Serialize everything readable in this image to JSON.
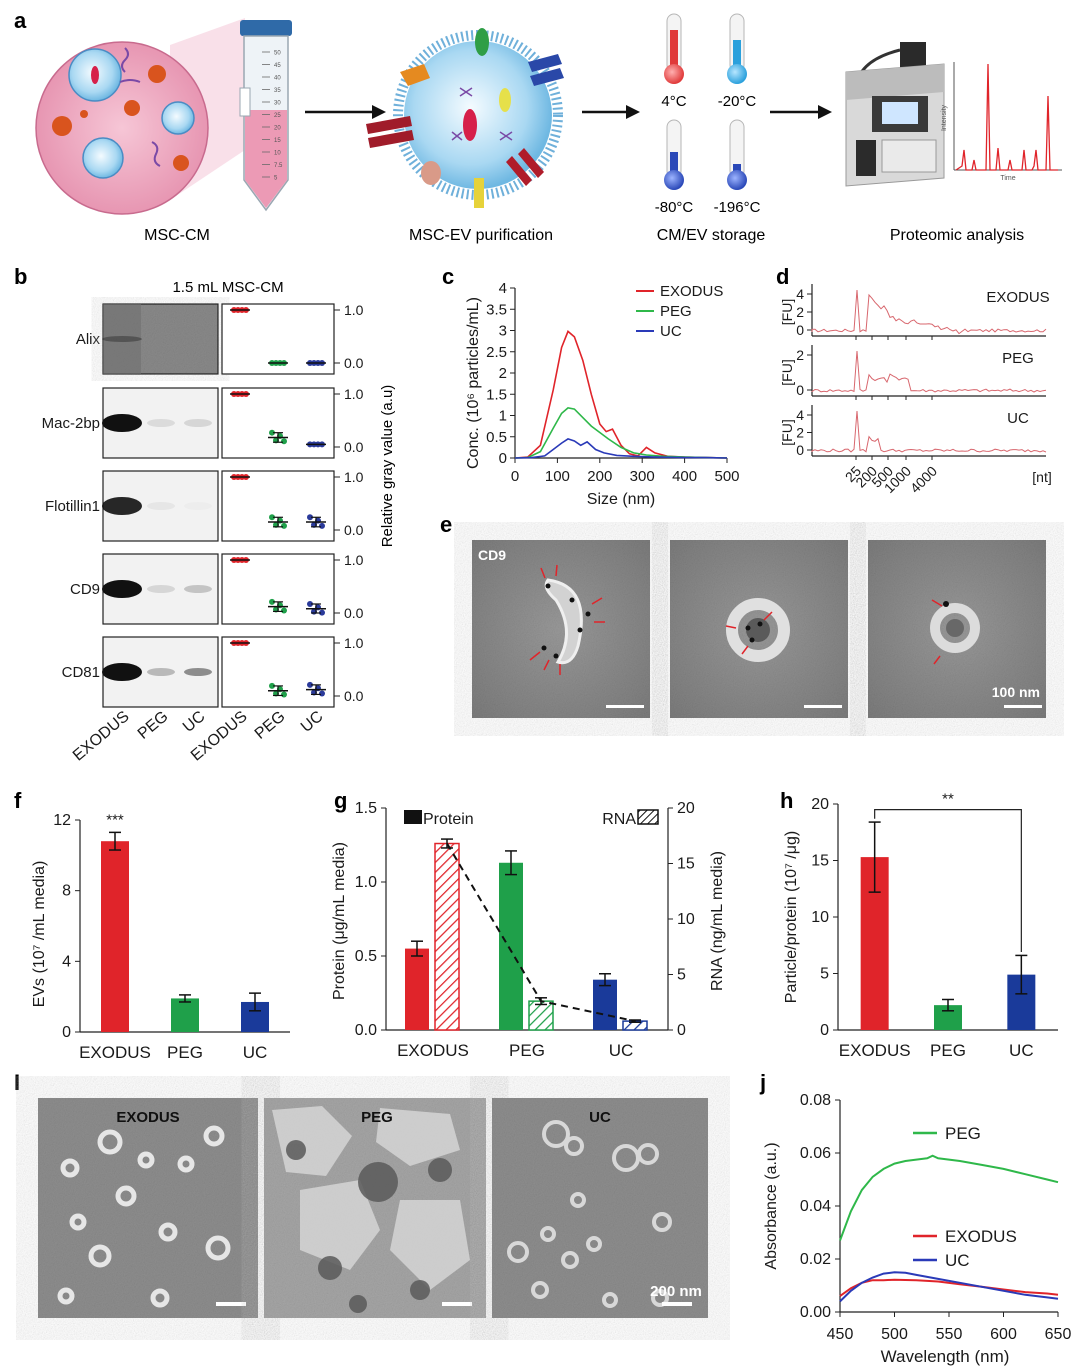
{
  "panel_letters": {
    "a": "a",
    "b": "b",
    "c": "c",
    "d": "d",
    "e": "e",
    "f": "f",
    "g": "g",
    "h": "h",
    "i": "I",
    "j": "j"
  },
  "panel_a": {
    "steps": [
      "MSC-CM",
      "MSC-EV purification",
      "CM/EV storage",
      "Proteomic analysis"
    ],
    "temperatures": [
      "4°C",
      "-20°C",
      "-80°C",
      "-196°C"
    ],
    "tube_ticks": [
      "50",
      "45",
      "40",
      "35",
      "30",
      "25",
      "20",
      "15",
      "10",
      "7.5",
      "5"
    ],
    "spectrum_ylabel": "Intensity",
    "spectrum_xlabel": "Time"
  },
  "panel_b": {
    "title": "1.5 mL MSC-CM",
    "proteins": [
      "Alix",
      "Mac-2bp",
      "Flotillin1",
      "CD9",
      "CD81"
    ],
    "lanes": [
      "EXODUS",
      "PEG",
      "UC"
    ],
    "ylabel": "Relative gray value (a.u)",
    "yticks": [
      "1.0",
      "0.0"
    ],
    "colors": {
      "EXODUS": "#e0242a",
      "PEG": "#1fa04a",
      "UC": "#2a3a9a"
    },
    "relative_values": [
      {
        "protein": "Alix",
        "EXODUS": 1.0,
        "PEG": 0.0,
        "UC": 0.0
      },
      {
        "protein": "Mac-2bp",
        "EXODUS": 1.0,
        "PEG": 0.18,
        "UC": 0.05
      },
      {
        "protein": "Flotillin1",
        "EXODUS": 1.0,
        "PEG": 0.15,
        "UC": 0.15
      },
      {
        "protein": "CD9",
        "EXODUS": 1.0,
        "PEG": 0.12,
        "UC": 0.08
      },
      {
        "protein": "CD81",
        "EXODUS": 1.0,
        "PEG": 0.1,
        "UC": 0.12
      }
    ]
  },
  "chart_data": [
    {
      "panel": "c",
      "type": "line",
      "xlabel": "Size (nm)",
      "ylabel": "Conc. (10⁶ particles/mL)",
      "xlim": [
        0,
        500
      ],
      "ylim": [
        0,
        4
      ],
      "xticks": [
        "0",
        "100",
        "200",
        "300",
        "400",
        "500"
      ],
      "yticks": [
        "0",
        "0.5",
        "1",
        "1.5",
        "2",
        "2.5",
        "3",
        "3.5",
        "4"
      ],
      "series": [
        {
          "name": "EXODUS",
          "color": "#e0242a",
          "x": [
            0,
            30,
            60,
            90,
            110,
            125,
            140,
            160,
            180,
            200,
            215,
            230,
            250,
            270,
            290,
            310,
            330,
            360,
            400,
            450,
            500
          ],
          "y": [
            0,
            0.02,
            0.3,
            1.6,
            2.6,
            2.98,
            2.85,
            2.3,
            1.5,
            0.8,
            0.62,
            0.68,
            0.3,
            0.1,
            0.05,
            0.25,
            0.12,
            0.04,
            0.02,
            0.01,
            0
          ]
        },
        {
          "name": "PEG",
          "color": "#2fb84a",
          "x": [
            0,
            30,
            60,
            90,
            110,
            125,
            140,
            160,
            180,
            200,
            220,
            250,
            280,
            310,
            350,
            400,
            450,
            500
          ],
          "y": [
            0,
            0.01,
            0.15,
            0.7,
            1.05,
            1.18,
            1.15,
            0.95,
            0.75,
            0.6,
            0.45,
            0.25,
            0.12,
            0.07,
            0.04,
            0.02,
            0.01,
            0
          ]
        },
        {
          "name": "UC",
          "color": "#2a3ab8",
          "x": [
            0,
            40,
            70,
            90,
            110,
            125,
            140,
            155,
            170,
            190,
            210,
            240,
            280,
            330,
            400,
            450,
            500
          ],
          "y": [
            0,
            0.01,
            0.05,
            0.2,
            0.35,
            0.45,
            0.4,
            0.3,
            0.38,
            0.2,
            0.12,
            0.06,
            0.04,
            0.02,
            0.01,
            0.01,
            0
          ]
        }
      ]
    },
    {
      "panel": "d",
      "type": "line",
      "ylabel": "[FU]",
      "xlabel": "[nt]",
      "xticks": [
        "25",
        "200",
        "500",
        "1000",
        "4000"
      ],
      "traces": [
        {
          "name": "EXODUS",
          "yticks": [
            "4",
            "2",
            "0"
          ]
        },
        {
          "name": "PEG",
          "yticks": [
            "2",
            "0"
          ]
        },
        {
          "name": "UC",
          "yticks": [
            "4",
            "2",
            "0"
          ]
        }
      ]
    },
    {
      "panel": "f",
      "type": "bar",
      "categories": [
        "EXODUS",
        "PEG",
        "UC"
      ],
      "values": [
        10.8,
        1.9,
        1.7
      ],
      "errors": [
        0.5,
        0.2,
        0.5
      ],
      "colors": [
        "#e0242a",
        "#1fa04a",
        "#1a3a9a"
      ],
      "significance": "***",
      "ylabel": "EVs (10⁷ /mL media)",
      "ylim": [
        0,
        12
      ],
      "yticks": [
        "0",
        "4",
        "8",
        "12"
      ]
    },
    {
      "panel": "g",
      "type": "bar",
      "categories": [
        "EXODUS",
        "PEG",
        "UC"
      ],
      "series": [
        {
          "name": "Protein",
          "values": [
            0.55,
            1.13,
            0.34
          ],
          "errors": [
            0.05,
            0.08,
            0.04
          ],
          "axis": "left"
        },
        {
          "name": "RNA",
          "values": [
            16.8,
            2.6,
            0.8
          ],
          "errors": [
            0.4,
            0.3,
            0.1
          ],
          "axis": "right"
        }
      ],
      "colors": [
        "#e0242a",
        "#1fa04a",
        "#1a3a9a"
      ],
      "ylabel_left": "Protein (μg/mL media)",
      "ylabel_right": "RNA (ng/mL media)",
      "ylim_left": [
        0,
        1.5
      ],
      "ylim_right": [
        0,
        20
      ],
      "yticks_left": [
        "0.0",
        "0.5",
        "1.0",
        "1.5"
      ],
      "yticks_right": [
        "0",
        "5",
        "10",
        "15",
        "20"
      ],
      "legend": [
        "Protein",
        "RNA"
      ]
    },
    {
      "panel": "h",
      "type": "bar",
      "categories": [
        "EXODUS",
        "PEG",
        "UC"
      ],
      "values": [
        15.3,
        2.2,
        4.9
      ],
      "errors": [
        3.1,
        0.5,
        1.7
      ],
      "colors": [
        "#e0242a",
        "#1fa04a",
        "#1a3a9a"
      ],
      "significance": "**",
      "ylabel": "Particle/protein (10⁷ /μg)",
      "ylim": [
        0,
        20
      ],
      "yticks": [
        "0",
        "5",
        "10",
        "15",
        "20"
      ]
    },
    {
      "panel": "j",
      "type": "line",
      "xlabel": "Wavelength (nm)",
      "ylabel": "Absorbance (a.u.)",
      "xlim": [
        450,
        650
      ],
      "ylim": [
        0,
        0.08
      ],
      "xticks": [
        "450",
        "500",
        "550",
        "600",
        "650"
      ],
      "yticks": [
        "0.00",
        "0.02",
        "0.04",
        "0.06",
        "0.08"
      ],
      "series": [
        {
          "name": "PEG",
          "color": "#2fb84a",
          "x": [
            450,
            460,
            470,
            480,
            490,
            500,
            510,
            520,
            530,
            535,
            540,
            560,
            580,
            600,
            620,
            640,
            650
          ],
          "y": [
            0.027,
            0.038,
            0.046,
            0.051,
            0.054,
            0.056,
            0.057,
            0.0575,
            0.058,
            0.059,
            0.058,
            0.057,
            0.0555,
            0.054,
            0.052,
            0.05,
            0.049
          ]
        },
        {
          "name": "EXODUS",
          "color": "#e0242a",
          "x": [
            450,
            460,
            470,
            480,
            490,
            500,
            520,
            540,
            560,
            580,
            600,
            620,
            640,
            650
          ],
          "y": [
            0.006,
            0.009,
            0.011,
            0.012,
            0.012,
            0.0122,
            0.012,
            0.0115,
            0.0105,
            0.0095,
            0.0085,
            0.0075,
            0.007,
            0.0065
          ]
        },
        {
          "name": "UC",
          "color": "#2a3ab8",
          "x": [
            450,
            460,
            470,
            480,
            490,
            500,
            510,
            520,
            540,
            560,
            580,
            600,
            620,
            640,
            650
          ],
          "y": [
            0.004,
            0.008,
            0.011,
            0.013,
            0.0145,
            0.015,
            0.0148,
            0.014,
            0.0125,
            0.011,
            0.0095,
            0.008,
            0.0065,
            0.0055,
            0.005
          ]
        }
      ]
    }
  ],
  "panel_e": {
    "label": "CD9",
    "scale": "100 nm"
  },
  "panel_i": {
    "labels": [
      "EXODUS",
      "PEG",
      "UC"
    ],
    "scale": "200 nm"
  }
}
